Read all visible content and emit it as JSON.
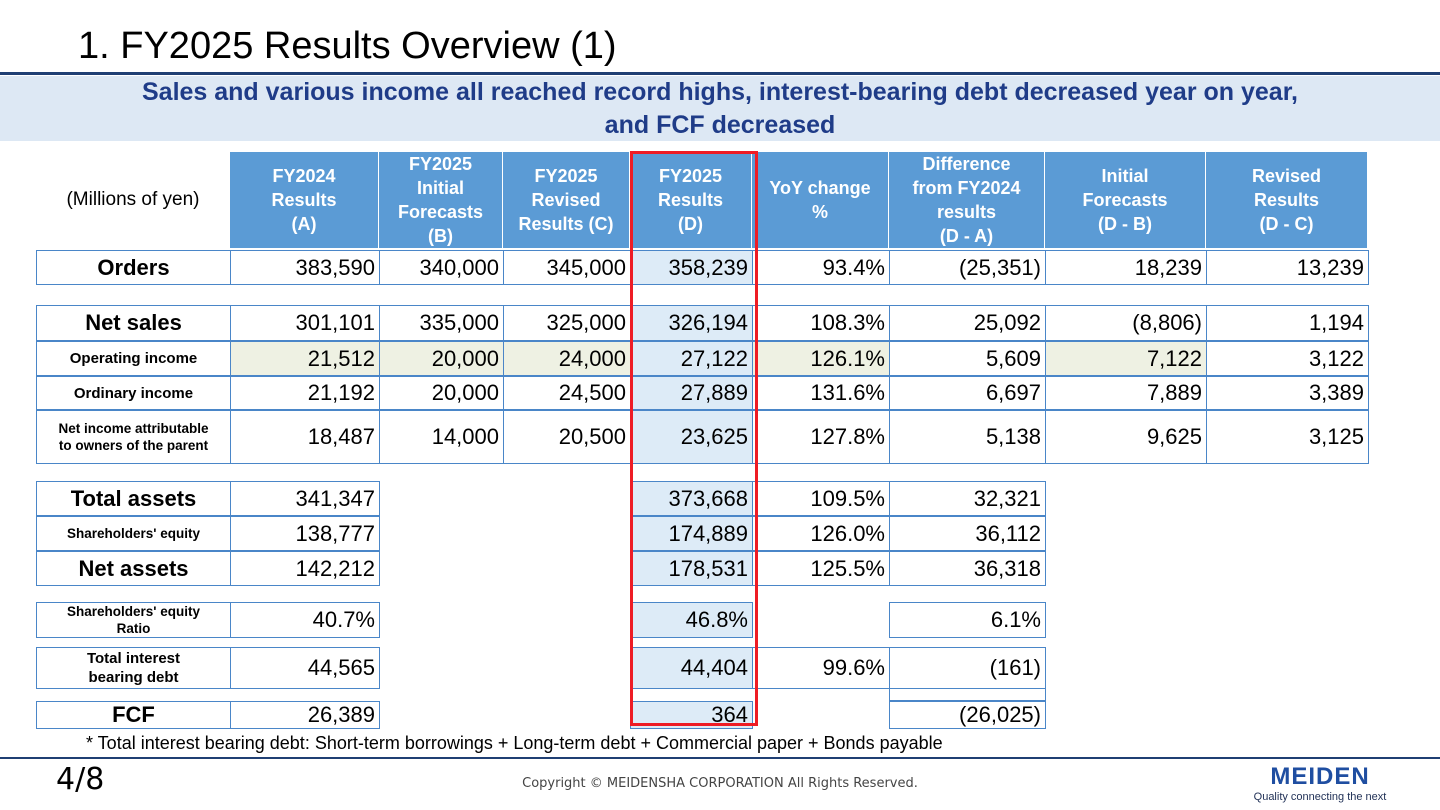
{
  "title": "1. FY2025 Results Overview (1)",
  "subtitle": {
    "line1": "Sales and various income all reached record highs, interest-bearing debt decreased year on year,",
    "line2": "and FCF decreased"
  },
  "table": {
    "unit_label": "(Millions of yen)",
    "headers": [
      [
        "FY2024",
        "Results",
        "(A)"
      ],
      [
        "FY2025",
        "Initial",
        "Forecasts",
        "(B)"
      ],
      [
        "FY2025",
        "Revised",
        "Results (C)"
      ],
      [
        "FY2025",
        "Results",
        "(D)"
      ],
      [
        "YoY change",
        "%"
      ],
      [
        "Difference",
        "from FY2024",
        "results",
        "(D - A)"
      ],
      [
        "Initial",
        "Forecasts",
        "(D - B)"
      ],
      [
        "Revised",
        "Results",
        "(D - C)"
      ]
    ],
    "rows": [
      {
        "label": [
          "Orders"
        ],
        "values": [
          "383,590",
          "340,000",
          "345,000",
          "358,239",
          "93.4%",
          "(25,351)",
          "18,239",
          "13,239"
        ]
      },
      {
        "label": [
          "Net sales"
        ],
        "values": [
          "301,101",
          "335,000",
          "325,000",
          "326,194",
          "108.3%",
          "25,092",
          "(8,806)",
          "1,194"
        ]
      },
      {
        "label": [
          "Operating income"
        ],
        "values": [
          "21,512",
          "20,000",
          "24,000",
          "27,122",
          "126.1%",
          "5,609",
          "7,122",
          "3,122"
        ]
      },
      {
        "label": [
          "Ordinary income"
        ],
        "values": [
          "21,192",
          "20,000",
          "24,500",
          "27,889",
          "131.6%",
          "6,697",
          "7,889",
          "3,389"
        ]
      },
      {
        "label": [
          "Net income attributable",
          "to owners of the parent"
        ],
        "values": [
          "18,487",
          "14,000",
          "20,500",
          "23,625",
          "127.8%",
          "5,138",
          "9,625",
          "3,125"
        ]
      },
      {
        "label": [
          "Total assets"
        ],
        "values": [
          "341,347",
          "",
          "",
          "373,668",
          "109.5%",
          "32,321"
        ]
      },
      {
        "label": [
          "Shareholders' equity"
        ],
        "values": [
          "138,777",
          "",
          "",
          "174,889",
          "126.0%",
          "36,112"
        ]
      },
      {
        "label": [
          "Net assets"
        ],
        "values": [
          "142,212",
          "",
          "",
          "178,531",
          "125.5%",
          "36,318"
        ]
      },
      {
        "label": [
          "Shareholders' equity",
          "Ratio"
        ],
        "values": [
          "40.7%",
          "",
          "",
          "46.8%",
          "",
          "6.1%"
        ]
      },
      {
        "label": [
          "Total interest",
          "bearing debt"
        ],
        "values": [
          "44,565",
          "",
          "",
          "44,404",
          "99.6%",
          "(161)"
        ]
      },
      {
        "label": [
          "FCF"
        ],
        "values": [
          "26,389",
          "",
          "",
          "364",
          "",
          "(26,025)"
        ]
      }
    ]
  },
  "footnote": "* Total interest bearing debt: Short-term borrowings + Long-term debt + Commercial paper + Bonds payable",
  "page_number": "4/8",
  "copyright": "Copyright © MEIDENSHA CORPORATION All Rights Reserved.",
  "logo": {
    "name": "MEIDEN",
    "tagline": "Quality connecting the next"
  },
  "colors": {
    "header_bg": "#5b9bd5",
    "border": "#4a86c8",
    "highlight_border": "#ee1c25",
    "subtitle_text": "#1f3c88"
  }
}
